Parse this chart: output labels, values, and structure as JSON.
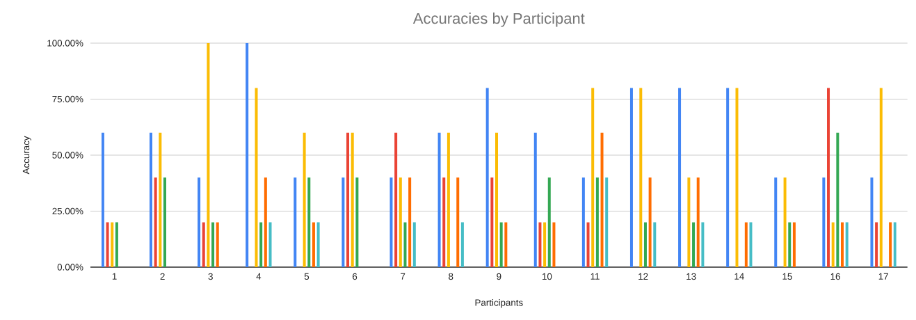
{
  "chart_data": {
    "type": "bar",
    "title": "Accuracies by Participant",
    "xlabel": "Participants",
    "ylabel": "Accuracy",
    "categories": [
      "1",
      "2",
      "3",
      "4",
      "5",
      "6",
      "7",
      "8",
      "9",
      "10",
      "11",
      "12",
      "13",
      "14",
      "15",
      "16",
      "17"
    ],
    "series": [
      {
        "color": "#4285f4",
        "values": [
          60,
          60,
          40,
          100,
          40,
          40,
          40,
          60,
          80,
          60,
          40,
          80,
          80,
          80,
          40,
          40,
          40
        ]
      },
      {
        "color": "#ea4335",
        "values": [
          20,
          40,
          20,
          0,
          0,
          60,
          60,
          40,
          40,
          20,
          20,
          0,
          0,
          0,
          0,
          80,
          20
        ]
      },
      {
        "color": "#fbbc04",
        "values": [
          20,
          60,
          100,
          80,
          60,
          60,
          40,
          60,
          60,
          20,
          80,
          80,
          40,
          80,
          40,
          20,
          80
        ]
      },
      {
        "color": "#34a853",
        "values": [
          20,
          40,
          20,
          20,
          40,
          40,
          20,
          0,
          20,
          40,
          40,
          20,
          20,
          0,
          20,
          60,
          0
        ]
      },
      {
        "color": "#ff6d01",
        "values": [
          0,
          0,
          20,
          40,
          20,
          0,
          40,
          40,
          20,
          20,
          60,
          40,
          40,
          20,
          20,
          20,
          20
        ]
      },
      {
        "color": "#46bdc6",
        "values": [
          0,
          0,
          0,
          20,
          20,
          0,
          20,
          20,
          0,
          0,
          40,
          20,
          20,
          20,
          0,
          20,
          20
        ]
      }
    ],
    "ylim": [
      0,
      100
    ],
    "yticks": [
      {
        "value": 0,
        "label": "0.00%"
      },
      {
        "value": 25,
        "label": "25.00%"
      },
      {
        "value": 50,
        "label": "50.00%"
      },
      {
        "value": 75,
        "label": "75.00%"
      },
      {
        "value": 100,
        "label": "100.00%"
      }
    ],
    "grid": "y"
  }
}
